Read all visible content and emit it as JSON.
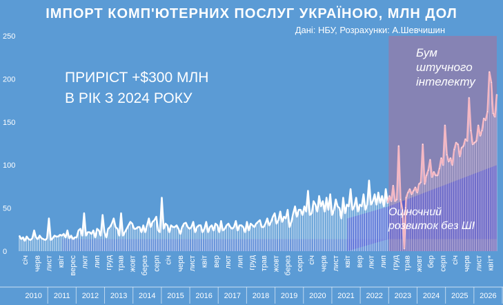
{
  "header": {
    "title": "ІМПОРТ КОМП'ЮТЕРНИХ ПОСЛУГ УКРАЇНОЮ, МЛН ДОЛ",
    "subtitle": "Дані: НБУ, Розрахунки: А.Шевчишин"
  },
  "annotations": {
    "headline_line1": "ПРИРІСТ +$300 МЛН",
    "headline_line2": "В РІК З 2024 РОКУ",
    "ai_boom_line1": "Бум",
    "ai_boom_line2": "штучного",
    "ai_boom_line3": "інтелекту",
    "baseline_line1": "Оціночний",
    "baseline_line2": "розвиток без ШІ"
  },
  "colors": {
    "background": "#5b9bd5",
    "series_line": "#ffffff",
    "series_line_ai": "#f4b8c4",
    "ai_highlight": "#8e7fae",
    "baseline_band": "#3f44d6"
  },
  "chart_data": {
    "type": "line",
    "title": "ІМПОРТ КОМП'ЮТЕРНИХ ПОСЛУГ УКРАЇНОЮ, МЛН ДОЛ",
    "ylim": [
      0,
      250
    ],
    "yticks": [
      0,
      50,
      100,
      150,
      200,
      250
    ],
    "years": [
      "2010",
      "2011",
      "2012",
      "2013",
      "2014",
      "2015",
      "2016",
      "2017",
      "2018",
      "2019",
      "2020",
      "2021",
      "2022",
      "2023",
      "2024",
      "2025",
      "2026"
    ],
    "month_labels": [
      "січ",
      "черв",
      "лист",
      "квіт",
      "верес",
      "лют",
      "лип",
      "груд",
      "трав",
      "жовт",
      "берез",
      "серп",
      "січ",
      "черв",
      "лист",
      "квіт",
      "вер",
      "лют",
      "лип",
      "груд",
      "трав",
      "жовт",
      "берез",
      "серп",
      "січ",
      "черв",
      "лист",
      "квіт",
      "вер",
      "лют",
      "лип",
      "груд",
      "трав",
      "жовт",
      "бер",
      "серп",
      "січ",
      "черв",
      "лист",
      "квіт*"
    ],
    "series": [
      {
        "values": [
          18,
          14,
          16,
          12,
          17,
          14,
          13,
          15,
          24,
          16,
          14,
          18,
          15,
          14,
          13,
          15,
          38,
          13,
          15,
          18,
          17,
          17,
          19,
          18,
          20,
          16,
          24,
          15,
          18,
          14,
          16,
          16,
          24,
          26,
          18,
          44,
          18,
          22,
          22,
          20,
          24,
          16,
          26,
          24,
          18,
          42,
          22,
          16,
          26,
          28,
          32,
          38,
          28,
          26,
          18,
          44,
          18,
          22,
          26,
          30,
          34,
          32,
          26,
          26,
          28,
          28,
          22,
          30,
          22,
          30,
          38,
          28,
          34,
          36,
          40,
          24,
          22,
          62,
          26,
          32,
          30,
          22,
          30,
          28,
          28,
          30,
          26,
          20,
          28,
          32,
          33,
          28,
          26,
          28,
          34,
          22,
          28,
          30,
          30,
          22,
          26,
          34,
          22,
          28,
          30,
          24,
          32,
          30,
          22,
          35,
          24,
          26,
          30,
          32,
          28,
          26,
          28,
          35,
          24,
          30,
          30,
          28,
          22,
          34,
          24,
          32,
          30,
          28,
          32,
          34,
          36,
          28,
          28,
          32,
          38,
          30,
          34,
          40,
          44,
          32,
          36,
          46,
          34,
          40,
          38,
          48,
          28,
          34,
          44,
          52,
          40,
          48,
          48,
          42,
          52,
          46,
          70,
          42,
          44,
          58,
          54,
          46,
          64,
          52,
          58,
          46,
          62,
          48,
          66,
          42,
          48,
          60,
          52,
          50,
          38,
          62,
          44,
          54,
          52,
          72,
          48,
          52,
          62,
          46,
          54,
          52,
          66,
          48,
          54,
          82,
          54,
          58,
          66,
          54,
          68,
          56,
          64,
          52,
          72,
          56,
          64,
          58,
          76,
          58,
          60,
          122,
          60,
          48,
          3,
          62,
          68,
          72,
          66,
          70,
          74,
          68,
          78,
          80,
          124,
          78,
          88,
          94,
          106,
          86,
          92,
          88,
          88,
          96,
          108,
          100,
          146,
          112,
          104,
          108,
          100,
          118,
          126,
          124,
          110,
          120,
          122,
          130,
          128,
          178,
          140,
          124,
          126,
          128,
          146,
          134,
          140,
          154,
          152,
          162,
          208,
          196,
          160,
          156,
          182
        ]
      }
    ],
    "ai_boom_start": "2023",
    "baseline_trend": {
      "start_year": "2023",
      "start_value": 52,
      "end_value": 100
    }
  }
}
